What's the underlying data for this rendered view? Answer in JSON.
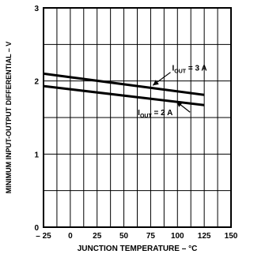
{
  "chart_data": {
    "type": "line",
    "title": "",
    "xlabel": "JUNCTION TEMPERATURE – °C",
    "ylabel": "MINIMUM INPUT-OUTPUT DIFFERENTIAL – V",
    "xlim": [
      -25,
      150
    ],
    "ylim": [
      0,
      3
    ],
    "x_ticks": [
      -25,
      0,
      25,
      50,
      75,
      100,
      125,
      150
    ],
    "x_tick_labels": [
      "– 25",
      "0",
      "25",
      "50",
      "75",
      "100",
      "125",
      "150"
    ],
    "y_ticks": [
      0,
      1,
      2,
      3
    ],
    "y_tick_labels": [
      "0",
      "1",
      "2",
      "3"
    ],
    "grid": true,
    "series": [
      {
        "name": "I_OUT = 3 A",
        "x": [
          -25,
          125
        ],
        "y": [
          2.1,
          1.81
        ]
      },
      {
        "name": "I_OUT = 2 A",
        "x": [
          -25,
          125
        ],
        "y": [
          1.93,
          1.67
        ]
      }
    ],
    "annotations": [
      {
        "label_main": "I",
        "label_sub": "OUT",
        "label_rest": " = 3 A",
        "series": 0,
        "x": 95,
        "y": 2.14,
        "point_x": 77,
        "point_y": 1.94
      },
      {
        "label_main": "I",
        "label_sub": "OUT",
        "label_rest": " = 2 A",
        "series": 1,
        "x": 63,
        "y": 1.53,
        "point_x": 99,
        "point_y": 1.72
      }
    ]
  }
}
